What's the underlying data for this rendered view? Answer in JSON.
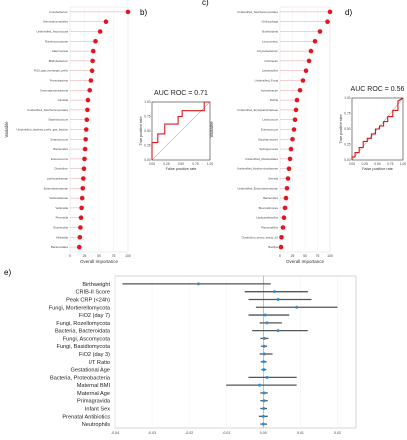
{
  "chart_data": [
    {
      "panel": "a)",
      "type": "scatter",
      "xlabel": "Overall Importance",
      "ylabel": "Variable",
      "xlim": [
        0,
        100
      ],
      "xticks": [
        "0",
        "25",
        "50",
        "75",
        "100"
      ],
      "categories": [
        "Fusobacterium",
        "Gemmatimonadetes",
        "Unidentified_Ascomycota",
        "Ruminococcaceae",
        "Akkermansia",
        "Bifidobacterium",
        "FiO2_gas_exchange_prefix",
        "Proteobacteria",
        "Gammaproteobacteria",
        "Candida",
        "Unidentified_Saccharomycetales",
        "Staphylococcus",
        "Unidentified_bacteria_prefix_gas_fraction",
        "Streptococcus",
        "Bacteroides",
        "Enterococcus",
        "Clostridium",
        "Lachnospiraceae",
        "Enterobacteriaceae",
        "Veillonellaceae",
        "Veillonella",
        "Prevotella",
        "Escherichia",
        "Klebsiella",
        "Bacteroidales"
      ],
      "values": [
        100,
        62,
        52,
        44,
        40,
        39,
        38,
        36,
        34,
        31,
        30,
        29,
        28,
        27,
        26,
        25,
        24,
        23,
        22,
        21,
        20,
        19,
        18,
        17,
        16
      ]
    },
    {
      "panel": "b)",
      "type": "line",
      "title": "AUC ROC = 0.71",
      "xlabel": "False positive rate",
      "ylabel": "True positive rate",
      "xlim": [
        0,
        1
      ],
      "ylim": [
        0,
        1
      ],
      "xticks": [
        "0.00",
        "0.25",
        "0.50",
        "0.75",
        "1.00"
      ],
      "yticks": [
        "0.00",
        "0.25",
        "0.50",
        "0.75",
        "1.00"
      ],
      "x": [
        0,
        0,
        0.1,
        0.1,
        0.22,
        0.22,
        0.45,
        0.45,
        0.52,
        0.52,
        0.9,
        0.9,
        1.0
      ],
      "y": [
        0,
        0.3,
        0.3,
        0.45,
        0.45,
        0.62,
        0.62,
        0.75,
        0.75,
        0.85,
        0.85,
        1.0,
        1.0
      ]
    },
    {
      "panel": "c)",
      "type": "scatter",
      "xlabel": "Overall Importance",
      "ylabel": "Variable",
      "xlim": [
        0,
        100
      ],
      "xticks": [
        "0",
        "25",
        "50",
        "75",
        "100"
      ],
      "categories": [
        "Unidentified_Saccharomycetales",
        "Chitinophaga",
        "Burkholderia",
        "Leuconostoc",
        "Corynebacterium",
        "Citrobacter",
        "Lactobacillus",
        "Unidentified_Fungi",
        "Acinetobacter",
        "Rothia",
        "Unidentified_Erysipelotrichaceae",
        "Lactococcus",
        "Enterococcus",
        "Saccharomyces",
        "Sphingomonas",
        "Unidentified_Mortierellales",
        "Unidentified_Hyphomicrobiaceae",
        "Serratia",
        "Unidentified_Enterobacteriaceae",
        "Bacteroides",
        "Brevundimonas",
        "Lacticaseibacillus",
        "Peptoniphilus",
        "Clostridium_sensu_stricto_10",
        "Bacillus"
      ],
      "values": [
        100,
        95,
        80,
        70,
        62,
        58,
        52,
        46,
        40,
        34,
        32,
        30,
        28,
        25,
        22,
        20,
        18,
        16,
        14,
        12,
        10,
        8,
        6,
        3,
        2
      ]
    },
    {
      "panel": "d)",
      "type": "line",
      "title": "AUC ROC = 0.56",
      "xlabel": "False positive rate",
      "ylabel": "True positive rate",
      "xlim": [
        0,
        1
      ],
      "ylim": [
        0,
        1
      ],
      "xticks": [
        "0.00",
        "0.25",
        "0.50",
        "0.75",
        "1.00"
      ],
      "yticks": [
        "0.00",
        "0.25",
        "0.50",
        "0.75",
        "1.00"
      ],
      "x": [
        0,
        0,
        0.06,
        0.06,
        0.14,
        0.14,
        0.22,
        0.22,
        0.3,
        0.3,
        0.38,
        0.38,
        0.46,
        0.46,
        0.54,
        0.54,
        0.62,
        0.62,
        0.7,
        0.7,
        0.8,
        0.8,
        0.9,
        0.9,
        1.0
      ],
      "y": [
        0,
        0.05,
        0.05,
        0.12,
        0.12,
        0.2,
        0.2,
        0.3,
        0.3,
        0.35,
        0.35,
        0.42,
        0.42,
        0.5,
        0.5,
        0.55,
        0.55,
        0.62,
        0.62,
        0.7,
        0.7,
        0.8,
        0.8,
        0.95,
        1.0
      ]
    },
    {
      "panel": "e)",
      "type": "scatter",
      "xlim": [
        -0.04,
        0.025
      ],
      "xticks": [
        "-0.04",
        "-0.03",
        "-0.02",
        "-0.01",
        "0.00",
        "0.01",
        "0.02"
      ],
      "tick_values": [
        -0.04,
        -0.03,
        -0.02,
        -0.01,
        0.0,
        0.01,
        0.02
      ],
      "categories": [
        "Birthweight",
        "CRIB-II Score",
        "Peak CRP (<24h)",
        "Fungi, Mortierellomycota",
        "FiO2 (day 7)",
        "Fungi, Rozellomycota",
        "Bacteria, Bacteroidata",
        "Fungi, Ascomycota",
        "Fungi, Basidiomycota",
        "FiO2 (day 3)",
        "I/T Ratio",
        "Gestational Age",
        "Bacteria, Proteobacteria",
        "Maternal BMI",
        "Maternal Age",
        "Primagravida",
        "Infant Sex",
        "Prenatal Antibiotics",
        "Neutrophils"
      ],
      "estimate": [
        -0.0175,
        0.003,
        0.004,
        0.009,
        0.0005,
        0.001,
        0.004,
        0.0003,
        0.0002,
        0.0003,
        0.0001,
        0.0001,
        0.001,
        -0.001,
        0.0002,
        0.0002,
        0.0001,
        0.0,
        0.0
      ],
      "lower": [
        -0.038,
        -0.005,
        -0.004,
        -0.002,
        -0.004,
        -0.001,
        -0.003,
        -0.0008,
        -0.0006,
        -0.001,
        -0.0007,
        -0.0005,
        -0.004,
        -0.01,
        -0.0008,
        -0.0008,
        -0.0008,
        -0.0012,
        -0.0008
      ],
      "upper": [
        0.002,
        0.012,
        0.013,
        0.02,
        0.007,
        0.005,
        0.012,
        0.0014,
        0.001,
        0.0025,
        0.0009,
        0.0008,
        0.009,
        0.009,
        0.0012,
        0.0012,
        0.001,
        0.0012,
        0.001
      ]
    }
  ]
}
